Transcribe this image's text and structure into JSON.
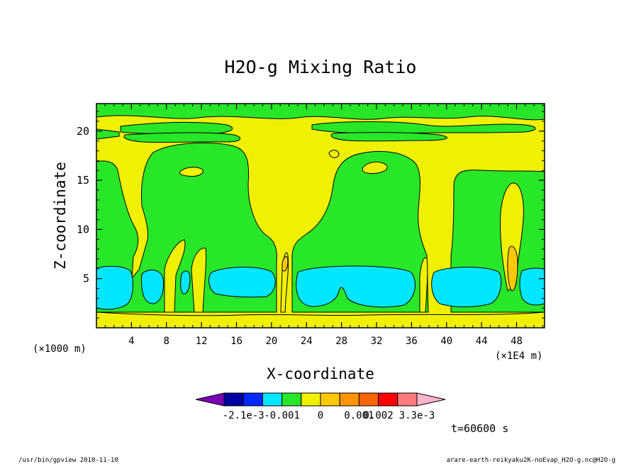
{
  "chart_data": {
    "type": "heatmap",
    "title": "H2O-g Mixing Ratio",
    "xlabel": "X-coordinate",
    "ylabel": "Z-coordinate",
    "x_unit_left": "(×1000 m)",
    "x_unit_right": "(×1E4 m)",
    "x_ticks": [
      "4",
      "8",
      "12",
      "16",
      "20",
      "24",
      "28",
      "32",
      "36",
      "40",
      "44",
      "48"
    ],
    "x_tick_values": [
      4,
      8,
      12,
      16,
      20,
      24,
      28,
      32,
      36,
      40,
      44,
      48
    ],
    "y_ticks": [
      "5",
      "10",
      "15",
      "20"
    ],
    "y_tick_values": [
      5,
      10,
      15,
      20
    ],
    "xlim": [
      0,
      51.2
    ],
    "ylim": [
      0,
      22.8
    ],
    "time_label": "t=60600 s",
    "legend": {
      "labels": [
        "-2.1e-3",
        "-0.001",
        "0",
        "0.001",
        "0.002",
        "3.3e-3"
      ],
      "colors": [
        "#7b00b4",
        "#0000a0",
        "#0028ff",
        "#00e6ff",
        "#28e628",
        "#f0f000",
        "#ffc800",
        "#ff9600",
        "#ff6400",
        "#ff0000",
        "#ff7a7a",
        "#ffb4c8"
      ]
    },
    "colors": {
      "cyan": "#00e6ff",
      "green": "#28e628",
      "yellow": "#f0f000",
      "orange": "#ffc800"
    }
  },
  "footer": {
    "left": "/usr/bin/gpview   2010-11-10",
    "right": "arare-earth-reikyaku2K-noEvap_H2O-g.nc@H2O-g"
  }
}
